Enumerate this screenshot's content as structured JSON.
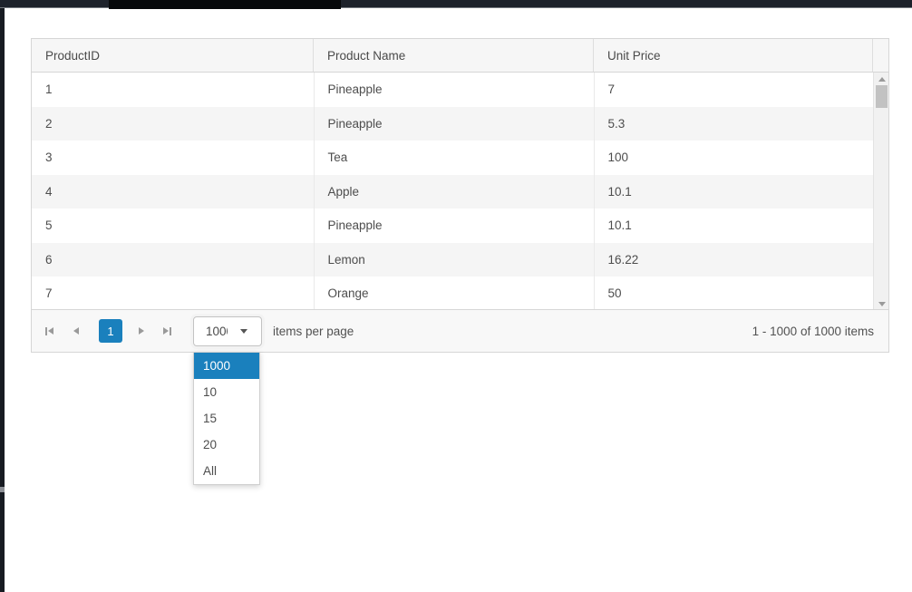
{
  "grid": {
    "columns": [
      {
        "label": "ProductID"
      },
      {
        "label": "Product Name"
      },
      {
        "label": "Unit Price"
      }
    ],
    "rows": [
      [
        "1",
        "Pineapple",
        "7"
      ],
      [
        "2",
        "Pineapple",
        "5.3"
      ],
      [
        "3",
        "Tea",
        "100"
      ],
      [
        "4",
        "Apple",
        "10.1"
      ],
      [
        "5",
        "Pineapple",
        "10.1"
      ],
      [
        "6",
        "Lemon",
        "16.22"
      ],
      [
        "7",
        "Orange",
        "50"
      ]
    ],
    "pager": {
      "current_page": "1",
      "page_size": "1000",
      "page_size_options": [
        "1000",
        "10",
        "15",
        "20",
        "All"
      ],
      "selected_page_size": "1000",
      "items_per_page_label": "items per page",
      "range_info": "1 - 1000 of 1000 items"
    },
    "icons": {
      "first": "seek-to-first-page-icon",
      "prev": "previous-page-icon",
      "next": "next-page-icon",
      "last": "seek-to-last-page-icon",
      "dropdown": "caret-down-icon",
      "scroll_up": "caret-up-icon",
      "scroll_down": "caret-down-icon"
    },
    "colors": {
      "accent": "#1a80bd",
      "header_bg": "#f6f6f6",
      "alt_row_bg": "#f5f5f5",
      "border": "#d6d6d6"
    }
  }
}
